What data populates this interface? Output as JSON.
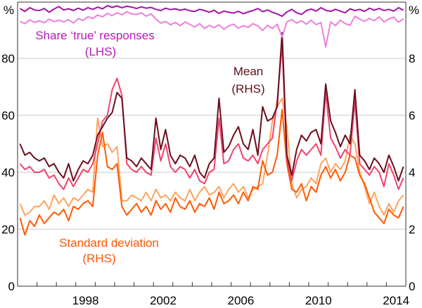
{
  "chart_data": {
    "type": "line",
    "title": "",
    "x_ticks": [
      "1998",
      "2002",
      "2006",
      "2010",
      "2014"
    ],
    "xlim": [
      1995,
      2015
    ],
    "left_axis": {
      "unit": "%",
      "ylim": [
        0,
        100
      ],
      "ticks": [
        "0",
        "20",
        "40",
        "60",
        "80"
      ]
    },
    "right_axis": {
      "unit": "%",
      "ylim": [
        0,
        10
      ],
      "ticks": [
        "0",
        "2",
        "4",
        "6",
        "8"
      ]
    },
    "grid": true,
    "annotations": {
      "share": {
        "line1": "Share ‘true’ responses",
        "line2": "(LHS)",
        "color": "#b31bb3"
      },
      "mean": {
        "line1": "Mean",
        "line2": "(RHS)",
        "color": "#5e0f18"
      },
      "sd": {
        "line1": "Standard deviation",
        "line2": "(RHS)",
        "color": "#ff5500"
      }
    },
    "x": [
      "1995Q1",
      "1995Q2",
      "1995Q3",
      "1995Q4",
      "1996Q1",
      "1996Q2",
      "1996Q3",
      "1996Q4",
      "1997Q1",
      "1997Q2",
      "1997Q3",
      "1997Q4",
      "1998Q1",
      "1998Q2",
      "1998Q3",
      "1998Q4",
      "1999Q1",
      "1999Q2",
      "1999Q3",
      "1999Q4",
      "2000Q1",
      "2000Q2",
      "2000Q3",
      "2000Q4",
      "2001Q1",
      "2001Q2",
      "2001Q3",
      "2001Q4",
      "2002Q1",
      "2002Q2",
      "2002Q3",
      "2002Q4",
      "2003Q1",
      "2003Q2",
      "2003Q3",
      "2003Q4",
      "2004Q1",
      "2004Q2",
      "2004Q3",
      "2004Q4",
      "2005Q1",
      "2005Q2",
      "2005Q3",
      "2005Q4",
      "2006Q1",
      "2006Q2",
      "2006Q3",
      "2006Q4",
      "2007Q1",
      "2007Q2",
      "2007Q3",
      "2007Q4",
      "2008Q1",
      "2008Q2",
      "2008Q3",
      "2008Q4",
      "2009Q1",
      "2009Q2",
      "2009Q3",
      "2009Q4",
      "2010Q1",
      "2010Q2",
      "2010Q3",
      "2010Q4",
      "2011Q1",
      "2011Q2",
      "2011Q3",
      "2011Q4",
      "2012Q1",
      "2012Q2",
      "2012Q3",
      "2012Q4",
      "2013Q1",
      "2013Q2",
      "2013Q3",
      "2013Q4",
      "2014Q1",
      "2014Q2",
      "2014Q3",
      "2014Q4"
    ],
    "series": [
      {
        "group": "share",
        "axis": "left",
        "color": "#a313a8",
        "values": [
          97.5,
          96.5,
          97.8,
          97.0,
          96.8,
          97.5,
          96.2,
          97.3,
          98.2,
          97.0,
          97.4,
          96.8,
          97.6,
          96.9,
          97.8,
          97.2,
          98.0,
          97.4,
          98.5,
          97.9,
          98.4,
          97.8,
          98.3,
          98.0,
          97.5,
          98.1,
          97.6,
          97.9,
          97.2,
          96.8,
          97.6,
          97.1,
          97.4,
          96.9,
          97.3,
          96.7,
          96.5,
          97.2,
          96.8,
          96.2,
          96.9,
          95.8,
          96.6,
          96.2,
          95.9,
          96.5,
          95.7,
          96.3,
          96.8,
          97.5,
          96.4,
          97.0,
          96.2,
          95.6,
          94.8,
          96.3,
          97.2,
          96.0,
          95.4,
          96.8,
          97.3,
          96.6,
          97.8,
          96.9,
          96.5,
          97.2,
          96.6,
          96.0,
          97.4,
          96.8,
          97.2,
          96.5,
          97.6,
          96.9,
          97.5,
          96.8,
          97.2,
          96.6,
          97.8,
          96.9
        ]
      },
      {
        "group": "share",
        "axis": "left",
        "color": "#ec7fdc",
        "values": [
          93.0,
          92.2,
          93.5,
          92.6,
          93.2,
          92.5,
          93.8,
          92.9,
          93.4,
          92.8,
          93.6,
          92.4,
          94.0,
          93.3,
          94.6,
          94.0,
          95.2,
          94.6,
          95.8,
          95.0,
          96.0,
          95.3,
          96.4,
          95.6,
          95.4,
          96.0,
          94.8,
          95.6,
          93.8,
          92.4,
          93.0,
          91.8,
          92.6,
          91.5,
          92.8,
          91.9,
          91.0,
          92.2,
          90.5,
          91.6,
          90.8,
          91.8,
          90.2,
          91.4,
          92.0,
          90.6,
          91.5,
          90.9,
          92.2,
          91.4,
          89.8,
          91.6,
          90.5,
          92.0,
          87.5,
          92.8,
          93.6,
          92.4,
          93.2,
          92.0,
          93.4,
          91.8,
          92.6,
          84.0,
          92.8,
          91.5,
          93.4,
          92.2,
          91.6,
          94.8,
          93.8,
          93.0,
          94.0,
          93.2,
          94.6,
          92.8,
          93.8,
          94.5,
          92.7,
          93.9
        ]
      },
      {
        "group": "mean",
        "axis": "right",
        "color": "#6a0f1c",
        "values": [
          5.0,
          4.6,
          4.7,
          4.5,
          4.4,
          4.5,
          4.2,
          4.3,
          4.0,
          3.8,
          4.3,
          3.7,
          4.1,
          4.4,
          4.3,
          4.6,
          5.3,
          5.6,
          5.9,
          6.1,
          6.8,
          6.6,
          4.5,
          4.4,
          4.2,
          4.5,
          4.3,
          4.1,
          5.9,
          4.8,
          5.5,
          4.6,
          4.3,
          4.6,
          4.5,
          4.2,
          4.6,
          4.0,
          3.8,
          4.3,
          4.5,
          6.6,
          4.7,
          4.9,
          5.3,
          5.6,
          5.0,
          4.8,
          5.5,
          4.6,
          6.3,
          5.8,
          5.9,
          6.3,
          8.9,
          4.6,
          3.9,
          4.8,
          5.3,
          5.1,
          5.4,
          5.5,
          5.0,
          7.1,
          5.8,
          5.4,
          4.9,
          5.3,
          5.0,
          6.9,
          4.6,
          4.4,
          4.1,
          4.5,
          4.3,
          4.0,
          4.6,
          4.2,
          3.7,
          4.2
        ]
      },
      {
        "group": "mean",
        "axis": "right",
        "color": "#f0436e",
        "values": [
          4.3,
          4.1,
          4.2,
          4.0,
          4.0,
          4.1,
          3.8,
          3.9,
          3.6,
          3.4,
          3.8,
          3.5,
          3.8,
          4.1,
          4.0,
          4.3,
          5.0,
          5.8,
          6.0,
          6.9,
          7.3,
          6.7,
          4.3,
          4.1,
          4.0,
          4.2,
          4.0,
          3.9,
          5.2,
          4.4,
          5.0,
          4.2,
          4.0,
          4.2,
          4.1,
          3.8,
          4.1,
          3.7,
          3.6,
          4.0,
          4.1,
          5.9,
          4.3,
          4.4,
          4.8,
          5.0,
          4.5,
          4.4,
          4.6,
          4.3,
          4.8,
          5.0,
          5.2,
          6.5,
          8.5,
          4.4,
          3.7,
          4.4,
          4.8,
          4.6,
          4.8,
          5.0,
          4.6,
          6.8,
          5.2,
          4.9,
          4.5,
          4.8,
          4.6,
          6.5,
          4.3,
          4.1,
          3.9,
          4.2,
          4.0,
          3.5,
          4.3,
          3.9,
          3.4,
          3.8
        ]
      },
      {
        "group": "sd",
        "axis": "right",
        "color": "#ff5a00",
        "values": [
          2.4,
          1.8,
          2.3,
          2.1,
          2.5,
          2.2,
          2.4,
          2.6,
          2.5,
          2.7,
          2.3,
          2.8,
          2.7,
          2.9,
          3.0,
          2.8,
          4.6,
          5.4,
          4.2,
          4.1,
          4.3,
          2.8,
          2.5,
          2.7,
          2.9,
          2.6,
          2.8,
          2.5,
          3.0,
          2.7,
          2.9,
          2.6,
          3.1,
          2.8,
          2.7,
          3.0,
          2.6,
          2.9,
          2.8,
          3.1,
          2.7,
          3.3,
          2.9,
          3.0,
          3.2,
          2.9,
          3.3,
          3.0,
          3.5,
          3.4,
          4.4,
          3.9,
          4.0,
          4.6,
          6.2,
          4.3,
          3.4,
          3.3,
          3.6,
          3.0,
          3.5,
          3.3,
          3.9,
          4.2,
          3.8,
          4.1,
          3.7,
          4.0,
          4.6,
          4.5,
          3.9,
          3.6,
          3.1,
          2.6,
          2.4,
          2.2,
          2.7,
          2.5,
          2.4,
          2.8
        ]
      },
      {
        "group": "sd",
        "axis": "right",
        "color": "#ffa35e",
        "values": [
          2.9,
          2.5,
          2.6,
          2.8,
          2.8,
          3.0,
          2.7,
          3.2,
          2.9,
          3.1,
          2.8,
          3.1,
          3.0,
          3.2,
          3.4,
          3.3,
          5.9,
          4.9,
          5.0,
          4.7,
          4.9,
          3.0,
          3.0,
          3.2,
          3.1,
          3.0,
          3.3,
          3.0,
          3.4,
          3.1,
          3.2,
          3.0,
          3.3,
          3.1,
          3.0,
          3.4,
          3.0,
          3.3,
          3.5,
          3.2,
          3.3,
          3.5,
          3.1,
          3.4,
          3.6,
          3.3,
          3.5,
          3.1,
          3.4,
          3.5,
          3.6,
          4.6,
          5.8,
          6.3,
          6.6,
          5.6,
          3.6,
          3.1,
          3.4,
          3.5,
          3.8,
          3.6,
          4.3,
          4.5,
          4.0,
          4.3,
          4.1,
          4.4,
          5.3,
          5.0,
          4.0,
          3.5,
          2.9,
          3.3,
          2.8,
          2.5,
          2.9,
          2.6,
          3.0,
          3.2
        ]
      }
    ]
  }
}
